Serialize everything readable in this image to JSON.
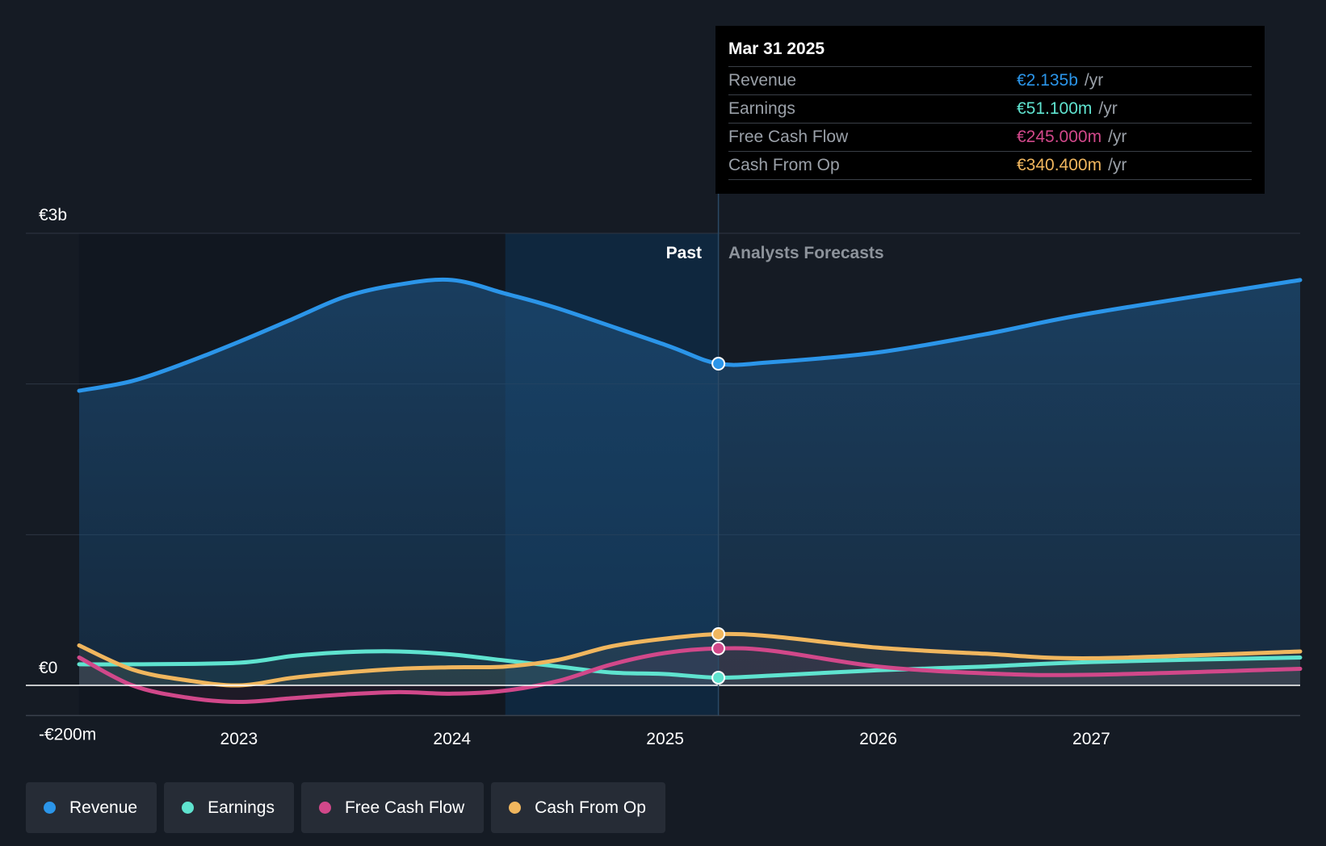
{
  "tooltip": {
    "date": "Mar 31 2025",
    "unit": "/yr",
    "rows": [
      {
        "label": "Revenue",
        "value": "€2.135b",
        "color": "#2b95e9"
      },
      {
        "label": "Earnings",
        "value": "€51.100m",
        "color": "#5fe3cf"
      },
      {
        "label": "Free Cash Flow",
        "value": "€245.000m",
        "color": "#d1488a"
      },
      {
        "label": "Cash From Op",
        "value": "€340.400m",
        "color": "#f0b65e"
      }
    ]
  },
  "legend": [
    {
      "label": "Revenue",
      "color": "#2b95e9"
    },
    {
      "label": "Earnings",
      "color": "#5fe3cf"
    },
    {
      "label": "Free Cash Flow",
      "color": "#d1488a"
    },
    {
      "label": "Cash From Op",
      "color": "#f0b65e"
    }
  ],
  "chart_data": {
    "type": "line",
    "past_label": "Past",
    "forecast_label": "Analysts Forecasts",
    "divider_x": 2025.25,
    "xlim": [
      2022.0,
      2027.98
    ],
    "ylim": [
      -200,
      3000
    ],
    "y_tick_labels": [
      {
        "value": 3000,
        "label": "€3b"
      },
      {
        "value": 0,
        "label": "€0"
      },
      {
        "value": -200,
        "label": "-€200m"
      }
    ],
    "y_gridlines": [
      3000,
      2000,
      1000
    ],
    "x_ticks": [
      2023,
      2024,
      2025,
      2026,
      2027
    ],
    "highlight_band": [
      2024.25,
      2025.25
    ],
    "series": [
      {
        "name": "Revenue",
        "color": "#2b95e9",
        "fill": true,
        "points": [
          [
            2022.25,
            1955
          ],
          [
            2022.5,
            2020
          ],
          [
            2022.75,
            2140
          ],
          [
            2023.0,
            2280
          ],
          [
            2023.25,
            2430
          ],
          [
            2023.5,
            2580
          ],
          [
            2023.75,
            2660
          ],
          [
            2024.0,
            2690
          ],
          [
            2024.25,
            2600
          ],
          [
            2024.5,
            2500
          ],
          [
            2025.0,
            2260
          ],
          [
            2025.25,
            2135
          ],
          [
            2025.5,
            2145
          ],
          [
            2026.0,
            2210
          ],
          [
            2026.5,
            2330
          ],
          [
            2027.0,
            2470
          ],
          [
            2027.98,
            2690
          ]
        ]
      },
      {
        "name": "Earnings",
        "color": "#5fe3cf",
        "fill": false,
        "points": [
          [
            2022.25,
            140
          ],
          [
            2022.5,
            140
          ],
          [
            2023.0,
            150
          ],
          [
            2023.25,
            195
          ],
          [
            2023.5,
            220
          ],
          [
            2023.75,
            225
          ],
          [
            2024.0,
            205
          ],
          [
            2024.25,
            165
          ],
          [
            2024.5,
            125
          ],
          [
            2024.75,
            85
          ],
          [
            2025.0,
            75
          ],
          [
            2025.25,
            51.1
          ],
          [
            2025.5,
            65
          ],
          [
            2026.0,
            100
          ],
          [
            2026.5,
            125
          ],
          [
            2027.0,
            155
          ],
          [
            2027.98,
            185
          ]
        ]
      },
      {
        "name": "Free Cash Flow",
        "color": "#d1488a",
        "fill": false,
        "points": [
          [
            2022.25,
            185
          ],
          [
            2022.5,
            0
          ],
          [
            2022.75,
            -80
          ],
          [
            2023.0,
            -110
          ],
          [
            2023.25,
            -85
          ],
          [
            2023.5,
            -60
          ],
          [
            2023.75,
            -45
          ],
          [
            2024.0,
            -55
          ],
          [
            2024.25,
            -35
          ],
          [
            2024.5,
            30
          ],
          [
            2024.75,
            140
          ],
          [
            2025.0,
            215
          ],
          [
            2025.25,
            245
          ],
          [
            2025.5,
            230
          ],
          [
            2026.0,
            125
          ],
          [
            2026.5,
            80
          ],
          [
            2027.0,
            70
          ],
          [
            2027.98,
            110
          ]
        ]
      },
      {
        "name": "Cash From Op",
        "color": "#f0b65e",
        "fill": false,
        "points": [
          [
            2022.25,
            265
          ],
          [
            2022.5,
            105
          ],
          [
            2022.75,
            35
          ],
          [
            2023.0,
            0
          ],
          [
            2023.25,
            50
          ],
          [
            2023.5,
            85
          ],
          [
            2023.75,
            110
          ],
          [
            2024.0,
            120
          ],
          [
            2024.25,
            125
          ],
          [
            2024.5,
            170
          ],
          [
            2024.75,
            260
          ],
          [
            2025.0,
            310
          ],
          [
            2025.25,
            340.4
          ],
          [
            2025.5,
            325
          ],
          [
            2026.0,
            250
          ],
          [
            2026.5,
            210
          ],
          [
            2027.0,
            180
          ],
          [
            2027.98,
            225
          ]
        ]
      }
    ]
  }
}
